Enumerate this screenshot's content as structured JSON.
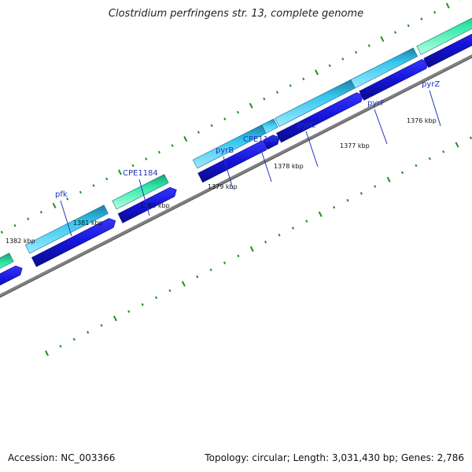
{
  "title": "Clostridium perfringens str. 13, complete genome",
  "footer": {
    "accession": "Accession: NC_003366",
    "summary": "Topology: circular; Length: 3,031,430 bp; Genes: 2,786"
  },
  "colors": {
    "backbone": "#808080",
    "tick": "#1f8f1f",
    "cds": "#1414d8",
    "gene_cyan": "#33c6ee",
    "gene_green": "#2ee8a4",
    "label": "#2233bb",
    "kbp_label": "#111111"
  },
  "kbp_labels": [
    "1376 kbp",
    "1377 kbp",
    "1378 kbp",
    "1379 kbp",
    "1380 kbp",
    "1381 kbp",
    "1382 kbp"
  ],
  "genes": [
    {
      "label": "pyrZ"
    },
    {
      "label": "pyrF"
    },
    {
      "label": "pyrC"
    },
    {
      "label": "CPE1182"
    },
    {
      "label": "pyrB"
    },
    {
      "label": "CPE1184"
    },
    {
      "label": "pfk"
    }
  ]
}
